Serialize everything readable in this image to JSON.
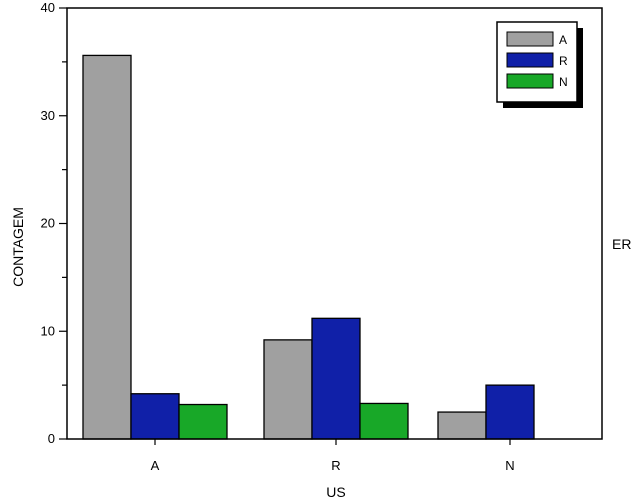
{
  "chart_data": {
    "type": "bar",
    "categories": [
      "A",
      "R",
      "N"
    ],
    "series": [
      {
        "name": "A",
        "color": "#a0a0a0",
        "values": [
          35.6,
          9.2,
          2.5
        ]
      },
      {
        "name": "R",
        "color": "#1020a8",
        "values": [
          4.2,
          11.2,
          5.0
        ]
      },
      {
        "name": "N",
        "color": "#18a828",
        "values": [
          3.2,
          3.3,
          0
        ]
      }
    ],
    "xlabel": "US",
    "ylabel": "CONTAGEM",
    "legend_title": "ER",
    "ylim": [
      0,
      40
    ],
    "yticks": [
      0,
      10,
      20,
      30,
      40
    ],
    "legend_position": "top-right",
    "grid": false
  }
}
